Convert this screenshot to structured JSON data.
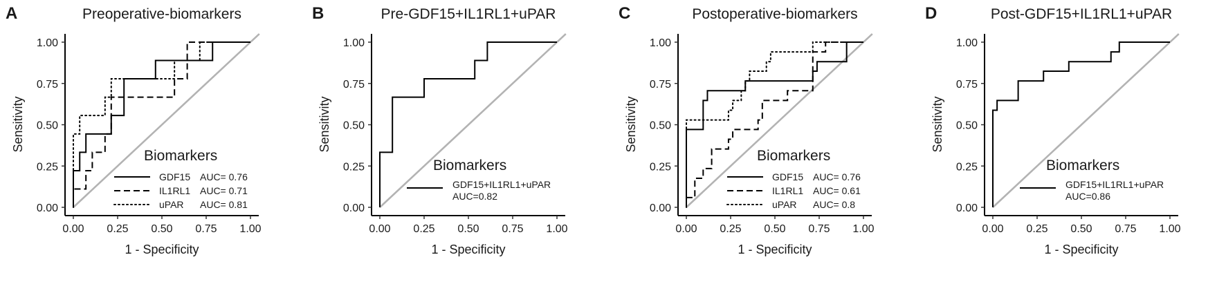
{
  "chart_data": [
    {
      "type": "line",
      "panel_label": "A",
      "title": "Preoperative-biomarkers",
      "xlabel": "1 - Specificity",
      "ylabel": "Sensitivity",
      "xlim": [
        0,
        1
      ],
      "ylim": [
        0,
        1
      ],
      "x_ticks": [
        "0.00",
        "0.25",
        "0.50",
        "0.75",
        "1.00"
      ],
      "y_ticks": [
        "0.00",
        "0.25",
        "0.50",
        "0.75",
        "1.00"
      ],
      "legend_title": "Biomarkers",
      "legend_position": "bottom-right",
      "legend": [
        {
          "name": "GDF15",
          "auc": "AUC= 0.76",
          "style": "solid"
        },
        {
          "name": "IL1RL1",
          "auc": "AUC= 0.71",
          "style": "dashed"
        },
        {
          "name": "uPAR",
          "auc": "AUC= 0.81",
          "style": "dotted"
        }
      ],
      "series": [
        {
          "name": "GDF15",
          "style": "solid",
          "points": [
            [
              0,
              0
            ],
            [
              0,
              0.222
            ],
            [
              0.036,
              0.222
            ],
            [
              0.036,
              0.333
            ],
            [
              0.071,
              0.333
            ],
            [
              0.071,
              0.444
            ],
            [
              0.214,
              0.444
            ],
            [
              0.214,
              0.556
            ],
            [
              0.286,
              0.556
            ],
            [
              0.286,
              0.778
            ],
            [
              0.464,
              0.778
            ],
            [
              0.464,
              0.889
            ],
            [
              0.786,
              0.889
            ],
            [
              0.786,
              1
            ],
            [
              1,
              1
            ]
          ]
        },
        {
          "name": "IL1RL1",
          "style": "dashed",
          "points": [
            [
              0,
              0
            ],
            [
              0,
              0.111
            ],
            [
              0.071,
              0.111
            ],
            [
              0.071,
              0.222
            ],
            [
              0.107,
              0.222
            ],
            [
              0.107,
              0.333
            ],
            [
              0.179,
              0.333
            ],
            [
              0.179,
              0.444
            ],
            [
              0.214,
              0.444
            ],
            [
              0.214,
              0.667
            ],
            [
              0.571,
              0.667
            ],
            [
              0.571,
              0.778
            ],
            [
              0.643,
              0.778
            ],
            [
              0.643,
              1
            ],
            [
              1,
              1
            ]
          ]
        },
        {
          "name": "uPAR",
          "style": "dotted",
          "points": [
            [
              0,
              0
            ],
            [
              0,
              0.444
            ],
            [
              0.036,
              0.444
            ],
            [
              0.036,
              0.556
            ],
            [
              0.179,
              0.556
            ],
            [
              0.179,
              0.667
            ],
            [
              0.214,
              0.667
            ],
            [
              0.214,
              0.778
            ],
            [
              0.571,
              0.778
            ],
            [
              0.571,
              0.889
            ],
            [
              0.714,
              0.889
            ],
            [
              0.714,
              1
            ],
            [
              1,
              1
            ]
          ]
        }
      ]
    },
    {
      "type": "line",
      "panel_label": "B",
      "title": "Pre-GDF15+IL1RL1+uPAR",
      "xlabel": "1 - Specificity",
      "ylabel": "Sensitivity",
      "xlim": [
        0,
        1
      ],
      "ylim": [
        0,
        1
      ],
      "x_ticks": [
        "0.00",
        "0.25",
        "0.50",
        "0.75",
        "1.00"
      ],
      "y_ticks": [
        "0.00",
        "0.25",
        "0.50",
        "0.75",
        "1.00"
      ],
      "legend_title": "Biomarkers",
      "legend_position": "bottom-right",
      "legend": [
        {
          "name": "GDF15+IL1RL1+uPAR",
          "auc": "AUC=0.82",
          "style": "solid"
        }
      ],
      "series": [
        {
          "name": "GDF15+IL1RL1+uPAR",
          "style": "solid",
          "points": [
            [
              0,
              0
            ],
            [
              0,
              0.333
            ],
            [
              0.071,
              0.333
            ],
            [
              0.071,
              0.667
            ],
            [
              0.25,
              0.667
            ],
            [
              0.25,
              0.778
            ],
            [
              0.536,
              0.778
            ],
            [
              0.536,
              0.889
            ],
            [
              0.607,
              0.889
            ],
            [
              0.607,
              1
            ],
            [
              1,
              1
            ]
          ]
        }
      ]
    },
    {
      "type": "line",
      "panel_label": "C",
      "title": "Postoperative-biomarkers",
      "xlabel": "1 - Specificity",
      "ylabel": "Sensitivity",
      "xlim": [
        0,
        1
      ],
      "ylim": [
        0,
        1
      ],
      "x_ticks": [
        "0.00",
        "0.25",
        "0.50",
        "0.75",
        "1.00"
      ],
      "y_ticks": [
        "0.00",
        "0.25",
        "0.50",
        "0.75",
        "1.00"
      ],
      "legend_title": "Biomarkers",
      "legend_position": "bottom-right",
      "legend": [
        {
          "name": "GDF15",
          "auc": "AUC= 0.76",
          "style": "solid"
        },
        {
          "name": "IL1RL1",
          "auc": "AUC= 0.61",
          "style": "dashed"
        },
        {
          "name": "uPAR",
          "auc": "AUC= 0.8",
          "style": "dotted"
        }
      ],
      "series": [
        {
          "name": "GDF15",
          "style": "solid",
          "points": [
            [
              0,
              0
            ],
            [
              0,
              0.471
            ],
            [
              0.095,
              0.471
            ],
            [
              0.095,
              0.647
            ],
            [
              0.119,
              0.647
            ],
            [
              0.119,
              0.706
            ],
            [
              0.333,
              0.706
            ],
            [
              0.333,
              0.765
            ],
            [
              0.714,
              0.765
            ],
            [
              0.714,
              0.824
            ],
            [
              0.738,
              0.824
            ],
            [
              0.738,
              0.882
            ],
            [
              0.905,
              0.882
            ],
            [
              0.905,
              1
            ],
            [
              1,
              1
            ]
          ]
        },
        {
          "name": "IL1RL1",
          "style": "dashed",
          "points": [
            [
              0,
              0
            ],
            [
              0,
              0.059
            ],
            [
              0.048,
              0.059
            ],
            [
              0.048,
              0.176
            ],
            [
              0.095,
              0.176
            ],
            [
              0.095,
              0.235
            ],
            [
              0.143,
              0.235
            ],
            [
              0.143,
              0.353
            ],
            [
              0.238,
              0.353
            ],
            [
              0.238,
              0.412
            ],
            [
              0.262,
              0.412
            ],
            [
              0.262,
              0.471
            ],
            [
              0.405,
              0.471
            ],
            [
              0.405,
              0.529
            ],
            [
              0.429,
              0.529
            ],
            [
              0.429,
              0.647
            ],
            [
              0.571,
              0.647
            ],
            [
              0.571,
              0.706
            ],
            [
              0.714,
              0.706
            ],
            [
              0.714,
              0.941
            ],
            [
              0.786,
              0.941
            ],
            [
              0.786,
              1
            ],
            [
              1,
              1
            ]
          ]
        },
        {
          "name": "uPAR",
          "style": "dotted",
          "points": [
            [
              0,
              0
            ],
            [
              0,
              0.529
            ],
            [
              0.238,
              0.529
            ],
            [
              0.238,
              0.588
            ],
            [
              0.262,
              0.588
            ],
            [
              0.262,
              0.647
            ],
            [
              0.31,
              0.647
            ],
            [
              0.31,
              0.706
            ],
            [
              0.333,
              0.706
            ],
            [
              0.333,
              0.765
            ],
            [
              0.357,
              0.765
            ],
            [
              0.357,
              0.824
            ],
            [
              0.452,
              0.824
            ],
            [
              0.452,
              0.882
            ],
            [
              0.476,
              0.882
            ],
            [
              0.476,
              0.941
            ],
            [
              0.714,
              0.941
            ],
            [
              0.714,
              1
            ],
            [
              1,
              1
            ]
          ]
        }
      ]
    },
    {
      "type": "line",
      "panel_label": "D",
      "title": "Post-GDF15+IL1RL1+uPAR",
      "xlabel": "1 - Specificity",
      "ylabel": "Sensitivity",
      "xlim": [
        0,
        1
      ],
      "ylim": [
        0,
        1
      ],
      "x_ticks": [
        "0.00",
        "0.25",
        "0.50",
        "0.75",
        "1.00"
      ],
      "y_ticks": [
        "0.00",
        "0.25",
        "0.50",
        "0.75",
        "1.00"
      ],
      "legend_title": "Biomarkers",
      "legend_position": "bottom-right",
      "legend": [
        {
          "name": "GDF15+IL1RL1+uPAR",
          "auc": "AUC=0.86",
          "style": "solid"
        }
      ],
      "series": [
        {
          "name": "GDF15+IL1RL1+uPAR",
          "style": "solid",
          "points": [
            [
              0,
              0
            ],
            [
              0,
              0.588
            ],
            [
              0.024,
              0.588
            ],
            [
              0.024,
              0.647
            ],
            [
              0.143,
              0.647
            ],
            [
              0.143,
              0.765
            ],
            [
              0.286,
              0.765
            ],
            [
              0.286,
              0.824
            ],
            [
              0.429,
              0.824
            ],
            [
              0.429,
              0.882
            ],
            [
              0.667,
              0.882
            ],
            [
              0.667,
              0.941
            ],
            [
              0.714,
              0.941
            ],
            [
              0.714,
              1
            ],
            [
              1,
              1
            ]
          ]
        }
      ]
    }
  ]
}
